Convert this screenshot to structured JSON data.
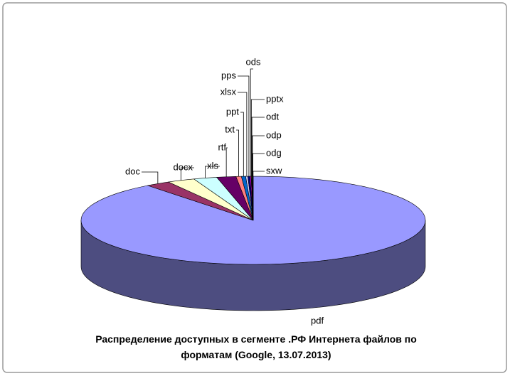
{
  "chart_data": {
    "type": "pie3d",
    "title": "Распределение доступных в сегменте .РФ Интернета файлов по форматам (Google, 13.07.2013)",
    "categories": [
      "pdf",
      "doc",
      "docx",
      "xls",
      "rtf",
      "txt",
      "ppt",
      "xlsx",
      "pps",
      "ods",
      "pptx",
      "odt",
      "odp",
      "odg",
      "sxw"
    ],
    "values": [
      89.5,
      2.3,
      2.6,
      2.2,
      1.8,
      0.5,
      0.4,
      0.2,
      0.2,
      0.1,
      0.05,
      0.05,
      0.05,
      0.03,
      0.02
    ],
    "colors": [
      "#9999ff",
      "#993366",
      "#ffffcc",
      "#ccffff",
      "#660066",
      "#ff8080",
      "#0066cc",
      "#ccccff",
      "#000080",
      "#ff00ff",
      "#ffff00",
      "#00ffff",
      "#800080",
      "#800000",
      "#008080"
    ]
  }
}
